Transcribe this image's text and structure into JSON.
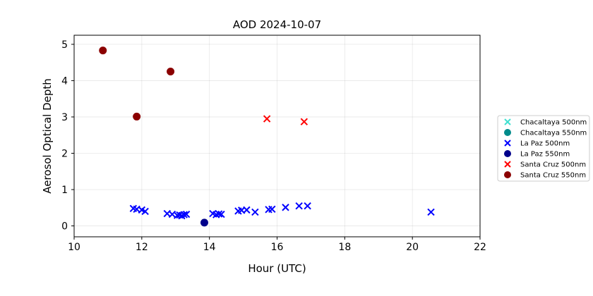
{
  "chart_data": {
    "type": "scatter",
    "title": "AOD 2024-10-07",
    "xlabel": "Hour (UTC)",
    "ylabel": "Aerosol Optical Depth",
    "xlim": [
      10,
      22
    ],
    "ylim": [
      -0.3,
      5.25
    ],
    "xticks": [
      10,
      12,
      14,
      16,
      18,
      20,
      22
    ],
    "yticks": [
      0,
      1,
      2,
      3,
      4,
      5
    ],
    "grid": true,
    "legend_position": "outside-right",
    "series": [
      {
        "name": "Chacaltaya 500nm",
        "marker": "x",
        "color": "#40e0d0",
        "points": []
      },
      {
        "name": "Chacaltaya 550nm",
        "marker": "o",
        "color": "#008b8b",
        "points": []
      },
      {
        "name": "La Paz 500nm",
        "marker": "x",
        "color": "#0000ff",
        "points": [
          [
            11.75,
            0.48
          ],
          [
            11.85,
            0.46
          ],
          [
            12.0,
            0.44
          ],
          [
            12.1,
            0.4
          ],
          [
            12.75,
            0.34
          ],
          [
            12.9,
            0.32
          ],
          [
            13.05,
            0.29
          ],
          [
            13.12,
            0.3
          ],
          [
            13.18,
            0.28
          ],
          [
            13.25,
            0.31
          ],
          [
            13.32,
            0.32
          ],
          [
            14.1,
            0.34
          ],
          [
            14.2,
            0.31
          ],
          [
            14.28,
            0.33
          ],
          [
            14.35,
            0.32
          ],
          [
            14.85,
            0.41
          ],
          [
            14.95,
            0.43
          ],
          [
            15.1,
            0.44
          ],
          [
            15.35,
            0.38
          ],
          [
            15.75,
            0.45
          ],
          [
            15.85,
            0.46
          ],
          [
            16.25,
            0.51
          ],
          [
            16.65,
            0.55
          ],
          [
            16.9,
            0.55
          ],
          [
            20.55,
            0.38
          ]
        ]
      },
      {
        "name": "La Paz 550nm",
        "marker": "o",
        "color": "#00008b",
        "points": [
          [
            13.85,
            0.09
          ]
        ]
      },
      {
        "name": "Santa Cruz 500nm",
        "marker": "x",
        "color": "#ff0000",
        "points": [
          [
            15.7,
            2.95
          ],
          [
            16.8,
            2.87
          ]
        ]
      },
      {
        "name": "Santa Cruz 550nm",
        "marker": "o",
        "color": "#8b0000",
        "points": [
          [
            10.85,
            4.83
          ],
          [
            11.85,
            3.01
          ],
          [
            12.85,
            4.25
          ]
        ]
      }
    ]
  }
}
